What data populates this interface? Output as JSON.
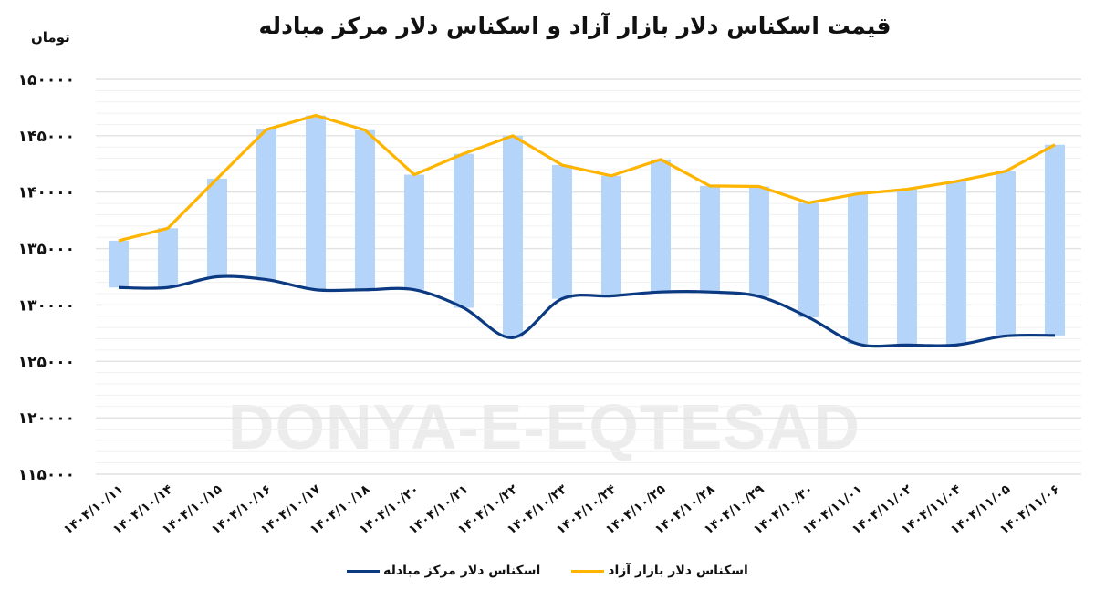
{
  "title": "قیمت اسکناس دلار بازار آزاد و اسکناس دلار مرکز مبادله",
  "unit": "تومان",
  "watermark": "DONYA-E-EQTESAD",
  "colors": {
    "free_market": "#FFB400",
    "exchange_center": "#0B3A82",
    "spread_bar": "#B4D4FA",
    "grid_major": "#E2E2E2",
    "grid_minor": "#F1F1F1"
  },
  "legend": [
    {
      "label": "اسکناس دلار بازار آزاد",
      "color": "#FFB400"
    },
    {
      "label": "اسکناس دلار مرکز مبادله",
      "color": "#0B3A82"
    }
  ],
  "chart_data": {
    "type": "line",
    "title": "قیمت اسکناس دلار بازار آزاد و اسکناس دلار مرکز مبادله",
    "xlabel": "",
    "ylabel": "تومان",
    "ylim": [
      115000,
      150000
    ],
    "ytick_step": 5000,
    "ytick_labels": [
      "۱۵۰۰۰۰",
      "۱۴۵۰۰۰",
      "۱۴۰۰۰۰",
      "۱۳۵۰۰۰",
      "۱۳۰۰۰۰",
      "۱۲۵۰۰۰",
      "۱۲۰۰۰۰",
      "۱۱۵۰۰۰"
    ],
    "grid": true,
    "legend_position": "bottom",
    "categories": [
      "۱۴۰۴/۱۰/۱۱",
      "۱۴۰۴/۱۰/۱۴",
      "۱۴۰۴/۱۰/۱۵",
      "۱۴۰۴/۱۰/۱۶",
      "۱۴۰۴/۱۰/۱۷",
      "۱۴۰۴/۱۰/۱۸",
      "۱۴۰۴/۱۰/۲۰",
      "۱۴۰۴/۱۰/۲۱",
      "۱۴۰۴/۱۰/۲۲",
      "۱۴۰۴/۱۰/۲۳",
      "۱۴۰۴/۱۰/۲۴",
      "۱۴۰۴/۱۰/۲۵",
      "۱۴۰۴/۱۰/۲۸",
      "۱۴۰۴/۱۰/۲۹",
      "۱۴۰۴/۱۰/۳۰",
      "۱۴۰۴/۱۱/۰۱",
      "۱۴۰۴/۱۱/۰۲",
      "۱۴۰۴/۱۱/۰۴",
      "۱۴۰۴/۱۱/۰۵",
      "۱۴۰۴/۱۱/۰۶"
    ],
    "series": [
      {
        "name": "اسکناس دلار بازار آزاد",
        "color": "#FFB400",
        "values": [
          135700,
          136800,
          141200,
          145550,
          146800,
          145500,
          141550,
          143400,
          145000,
          142400,
          141450,
          142900,
          140550,
          140500,
          139050,
          139850,
          140250,
          140950,
          141850,
          144200
        ]
      },
      {
        "name": "اسکناس دلار مرکز مبادله",
        "color": "#0B3A82",
        "values": [
          131550,
          131550,
          132500,
          132250,
          131350,
          131350,
          131350,
          129750,
          127100,
          130550,
          130800,
          131150,
          131150,
          130750,
          128900,
          126550,
          126450,
          126450,
          127250,
          127300
        ]
      }
    ],
    "spread_bars": "light-blue floating bars spanning from exchange-center price to free-market price for each date"
  }
}
